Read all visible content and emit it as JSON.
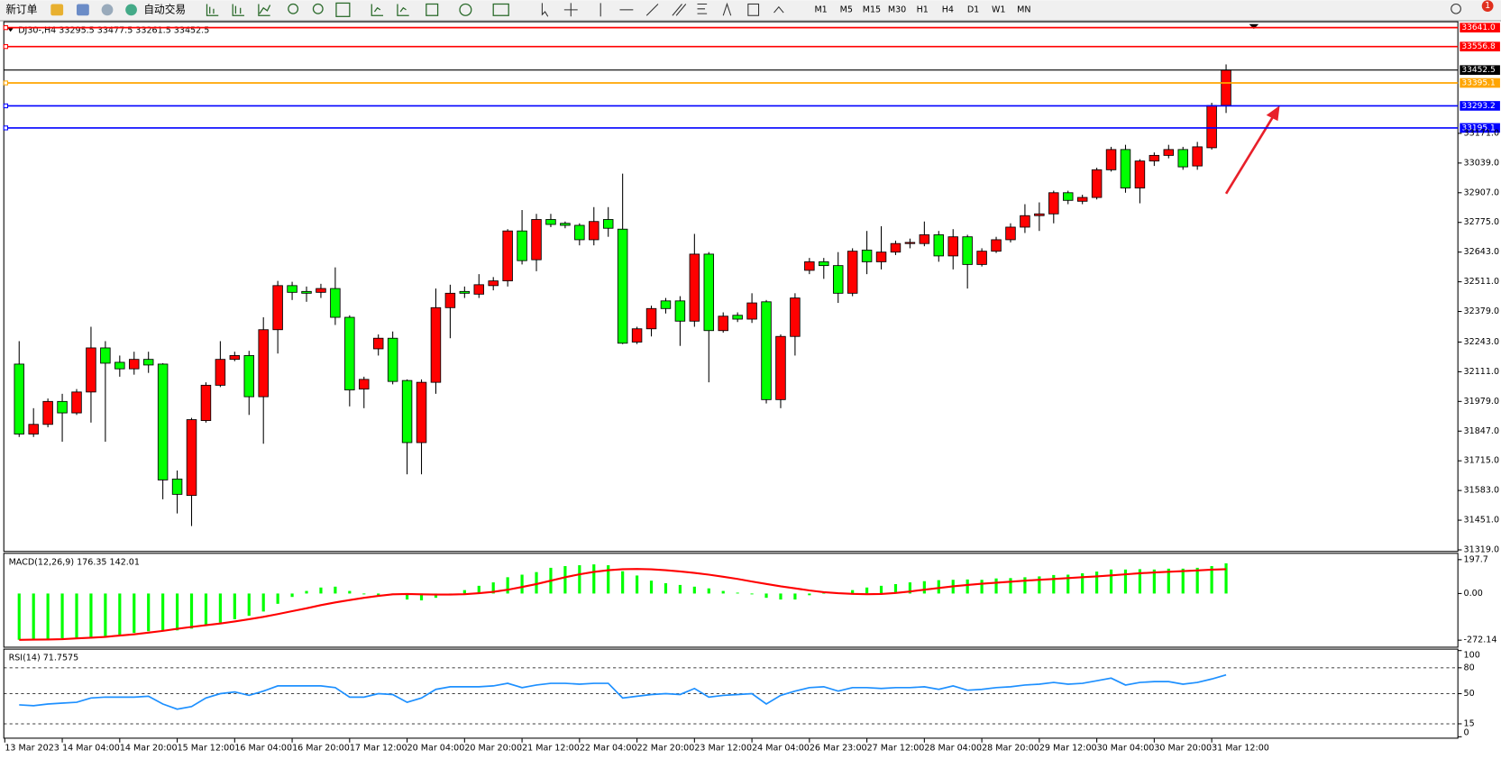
{
  "toolbar": {
    "new_order": "新订单",
    "auto_trading": "自动交易",
    "timeframes": [
      "M1",
      "M5",
      "M15",
      "M30",
      "H1",
      "H4",
      "D1",
      "W1",
      "MN"
    ],
    "notifications": "1"
  },
  "chart_data": {
    "type": "candlestick",
    "header": "DJ30-,H4  33295.5 33477.5 33261.5 33452.5",
    "up_color": "#ff0000",
    "down_color": "#00ff00",
    "ylim": [
      31310,
      33665
    ],
    "yticks": [
      {
        "value": 31319,
        "label": "31319.0"
      },
      {
        "value": 31451,
        "label": "31451.0"
      },
      {
        "value": 31583,
        "label": "31583.0"
      },
      {
        "value": 31715,
        "label": "31715.0"
      },
      {
        "value": 31847,
        "label": "31847.0"
      },
      {
        "value": 31979,
        "label": "31979.0"
      },
      {
        "value": 32111,
        "label": "32111.0"
      },
      {
        "value": 32243,
        "label": "32243.0"
      },
      {
        "value": 32379,
        "label": "32379.0"
      },
      {
        "value": 32511,
        "label": "32511.0"
      },
      {
        "value": 32643,
        "label": "32643.0"
      },
      {
        "value": 32775,
        "label": "32775.0"
      },
      {
        "value": 32907,
        "label": "32907.0"
      },
      {
        "value": 33039,
        "label": "33039.0"
      },
      {
        "value": 33171,
        "label": "33171.0"
      }
    ],
    "levels": [
      {
        "value": 33641,
        "label": "33641.0",
        "color": "#ff0000"
      },
      {
        "value": 33556.8,
        "label": "33556.8",
        "color": "#ff0000"
      },
      {
        "value": 33452.5,
        "label": "33452.5",
        "color": "#000000"
      },
      {
        "value": 33395.1,
        "label": "33395.1",
        "color": "#ffa500"
      },
      {
        "value": 33293.2,
        "label": "33293.2",
        "color": "#0000ff"
      },
      {
        "value": 33195.1,
        "label": "33195.1",
        "color": "#0000ff"
      }
    ],
    "x_labels": [
      "13 Mar 2023",
      "14 Mar 04:00",
      "14 Mar 20:00",
      "15 Mar 12:00",
      "16 Mar 04:00",
      "16 Mar 20:00",
      "17 Mar 12:00",
      "20 Mar 04:00",
      "20 Mar 20:00",
      "21 Mar 12:00",
      "22 Mar 04:00",
      "22 Mar 20:00",
      "23 Mar 12:00",
      "24 Mar 04:00",
      "26 Mar 23:00",
      "27 Mar 12:00",
      "28 Mar 04:00",
      "28 Mar 20:00",
      "29 Mar 12:00",
      "30 Mar 04:00",
      "30 Mar 20:00",
      "31 Mar 12:00"
    ],
    "ohlc": [
      [
        32145,
        32247,
        31821,
        31834
      ],
      [
        31834,
        31949,
        31821,
        31877
      ],
      [
        31877,
        31992,
        31864,
        31979
      ],
      [
        31979,
        32013,
        31800,
        31928
      ],
      [
        31928,
        32034,
        31919,
        32021
      ],
      [
        32021,
        32311,
        31885,
        32217
      ],
      [
        32217,
        32247,
        31800,
        32149
      ],
      [
        32153,
        32183,
        32089,
        32124
      ],
      [
        32124,
        32200,
        32098,
        32166
      ],
      [
        32166,
        32200,
        32106,
        32141
      ],
      [
        32145,
        32149,
        31544,
        31630
      ],
      [
        31634,
        31672,
        31481,
        31566
      ],
      [
        31561,
        31906,
        31425,
        31898
      ],
      [
        31894,
        32064,
        31885,
        32051
      ],
      [
        32051,
        32247,
        32043,
        32166
      ],
      [
        32166,
        32200,
        32158,
        32183
      ],
      [
        32183,
        32204,
        31919,
        32000
      ],
      [
        32000,
        32353,
        31791,
        32298
      ],
      [
        32298,
        32515,
        32192,
        32494
      ],
      [
        32494,
        32511,
        32430,
        32464
      ],
      [
        32468,
        32490,
        32422,
        32460
      ],
      [
        32464,
        32502,
        32439,
        32481
      ],
      [
        32481,
        32575,
        32319,
        32353
      ],
      [
        32353,
        32362,
        31957,
        32030
      ],
      [
        32034,
        32089,
        31949,
        32077
      ],
      [
        32213,
        32277,
        32183,
        32260
      ],
      [
        32260,
        32290,
        32055,
        32068
      ],
      [
        32072,
        32077,
        31655,
        31796
      ],
      [
        31796,
        32077,
        31655,
        32064
      ],
      [
        32064,
        32481,
        32013,
        32396
      ],
      [
        32396,
        32498,
        32260,
        32460
      ],
      [
        32468,
        32490,
        32439,
        32460
      ],
      [
        32456,
        32545,
        32439,
        32498
      ],
      [
        32494,
        32532,
        32473,
        32515
      ],
      [
        32515,
        32745,
        32490,
        32737
      ],
      [
        32737,
        32830,
        32588,
        32605
      ],
      [
        32609,
        32813,
        32558,
        32788
      ],
      [
        32788,
        32813,
        32754,
        32766
      ],
      [
        32771,
        32779,
        32749,
        32762
      ],
      [
        32762,
        32771,
        32673,
        32698
      ],
      [
        32698,
        32843,
        32673,
        32779
      ],
      [
        32788,
        32843,
        32711,
        32749
      ],
      [
        32745,
        32992,
        32234,
        32238
      ],
      [
        32243,
        32311,
        32234,
        32302
      ],
      [
        32302,
        32405,
        32268,
        32392
      ],
      [
        32426,
        32439,
        32370,
        32392
      ],
      [
        32426,
        32447,
        32226,
        32336
      ],
      [
        32336,
        32724,
        32311,
        32634
      ],
      [
        32634,
        32643,
        32064,
        32294
      ],
      [
        32294,
        32375,
        32285,
        32358
      ],
      [
        32362,
        32375,
        32332,
        32345
      ],
      [
        32345,
        32460,
        32328,
        32417
      ],
      [
        32422,
        32430,
        31970,
        31987
      ],
      [
        31987,
        32277,
        31949,
        32268
      ],
      [
        32268,
        32460,
        32183,
        32439
      ],
      [
        32562,
        32617,
        32545,
        32600
      ],
      [
        32600,
        32617,
        32524,
        32583
      ],
      [
        32583,
        32643,
        32417,
        32460
      ],
      [
        32460,
        32660,
        32447,
        32647
      ],
      [
        32652,
        32737,
        32545,
        32600
      ],
      [
        32600,
        32758,
        32566,
        32643
      ],
      [
        32643,
        32694,
        32630,
        32681
      ],
      [
        32681,
        32703,
        32660,
        32686
      ],
      [
        32681,
        32779,
        32669,
        32720
      ],
      [
        32720,
        32737,
        32600,
        32626
      ],
      [
        32626,
        32745,
        32566,
        32711
      ],
      [
        32711,
        32720,
        32481,
        32588
      ],
      [
        32588,
        32660,
        32579,
        32647
      ],
      [
        32647,
        32711,
        32639,
        32698
      ],
      [
        32698,
        32771,
        32686,
        32754
      ],
      [
        32754,
        32856,
        32728,
        32805
      ],
      [
        32805,
        32864,
        32737,
        32813
      ],
      [
        32813,
        32916,
        32771,
        32907
      ],
      [
        32907,
        32916,
        32856,
        32873
      ],
      [
        32869,
        32898,
        32856,
        32886
      ],
      [
        32886,
        33018,
        32877,
        33009
      ],
      [
        33009,
        33111,
        33001,
        33099
      ],
      [
        33099,
        33120,
        32907,
        32928
      ],
      [
        32928,
        33056,
        32860,
        33048
      ],
      [
        33048,
        33086,
        33026,
        33073
      ],
      [
        33073,
        33120,
        33060,
        33099
      ],
      [
        33099,
        33111,
        33009,
        33022
      ],
      [
        33026,
        33133,
        33009,
        33111
      ],
      [
        33107,
        33307,
        33099,
        33295
      ],
      [
        33295.5,
        33477.5,
        33261.5,
        33452.5
      ]
    ],
    "macd": {
      "label": "MACD(12,26,9) 176.35 142.01",
      "ylim": [
        -316,
        231.6
      ],
      "yticks": [
        197.7,
        {
          "value": 0,
          "label": "0.00"
        },
        -272.14
      ],
      "histogram_color": "#00ff00",
      "signal_color": "#ff0000",
      "histogram": [
        -270,
        -268,
        -265,
        -262,
        -258,
        -255,
        -250,
        -240,
        -230,
        -220,
        -215,
        -215,
        -205,
        -190,
        -170,
        -150,
        -130,
        -105,
        -60,
        -20,
        15,
        35,
        40,
        15,
        -5,
        -10,
        -5,
        -35,
        -40,
        -25,
        -5,
        20,
        45,
        65,
        95,
        110,
        125,
        150,
        160,
        165,
        170,
        165,
        130,
        105,
        75,
        60,
        50,
        40,
        30,
        15,
        5,
        -5,
        -25,
        -35,
        -35,
        -10,
        -2,
        5,
        20,
        35,
        45,
        55,
        65,
        72,
        78,
        80,
        82,
        80,
        88,
        90,
        95,
        100,
        108,
        110,
        118,
        128,
        140,
        140,
        142,
        140,
        145,
        145,
        150,
        160,
        176.35
      ],
      "signal": [
        -270,
        -269,
        -268,
        -266,
        -262,
        -258,
        -253,
        -245,
        -238,
        -228,
        -218,
        -206,
        -195,
        -185,
        -175,
        -163,
        -150,
        -136,
        -120,
        -103,
        -86,
        -68,
        -52,
        -38,
        -25,
        -14,
        -5,
        -3,
        -5,
        -6,
        -6,
        -4,
        2,
        10,
        22,
        38,
        55,
        75,
        95,
        112,
        126,
        136,
        142,
        143,
        141,
        136,
        129,
        120,
        110,
        98,
        85,
        70,
        56,
        42,
        30,
        18,
        8,
        2,
        -2,
        -4,
        -3,
        3,
        12,
        22,
        32,
        42,
        50,
        57,
        63,
        69,
        75,
        80,
        85,
        90,
        95,
        100,
        106,
        112,
        118,
        123,
        127,
        131,
        135,
        139,
        142.01
      ]
    },
    "rsi": {
      "label": "RSI(14) 71.7575",
      "ylim": [
        0,
        100
      ],
      "yticks": [
        100,
        80,
        50,
        15,
        0
      ],
      "levels": [
        80,
        50,
        15
      ],
      "color": "#1e90ff",
      "values": [
        37,
        36,
        38,
        39,
        40,
        45,
        46,
        46,
        46,
        47,
        38,
        32,
        35,
        45,
        50,
        52,
        48,
        53,
        59,
        59,
        59,
        59,
        57,
        46,
        46,
        50,
        49,
        40,
        45,
        55,
        58,
        58,
        58,
        59,
        62,
        57,
        60,
        62,
        62,
        61,
        62,
        62,
        45,
        47,
        49,
        50,
        49,
        56,
        46,
        48,
        49,
        50,
        38,
        48,
        53,
        57,
        58,
        53,
        57,
        57,
        56,
        57,
        57,
        58,
        55,
        59,
        54,
        55,
        57,
        58,
        60,
        61,
        63,
        61,
        62,
        65,
        68,
        60,
        63,
        64,
        64,
        61,
        63,
        67,
        71.7575
      ]
    }
  }
}
